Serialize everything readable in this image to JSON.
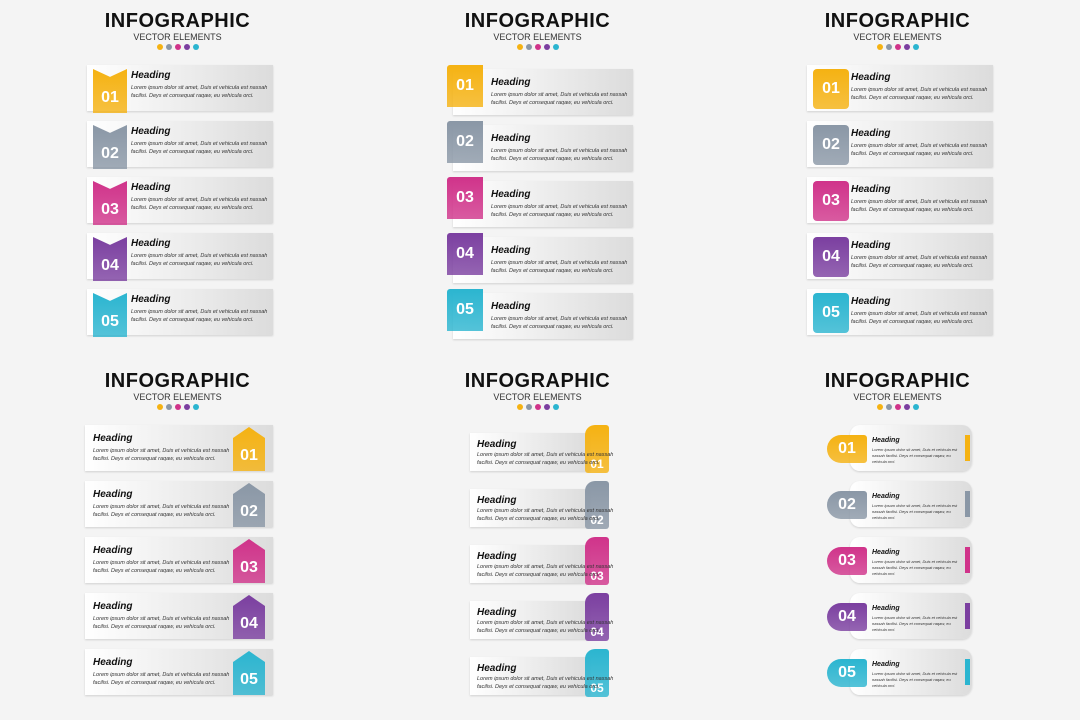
{
  "title": "INFOGRAPHIC",
  "subtitle": "VECTOR ELEMENTS",
  "colors": [
    "#f5b212",
    "#8a97a6",
    "#d0338a",
    "#7b3fa0",
    "#2bb5d0"
  ],
  "panels": [
    {
      "style": "ribbon-left",
      "items": [
        {
          "number": "01",
          "heading": "Heading",
          "text": "Lorem ipsum dolor sit amet, Duis et vehicula est nassah facilisi. Deys et consequat raqaw, eu vehicula orci."
        },
        {
          "number": "02",
          "heading": "Heading",
          "text": "Lorem ipsum dolor sit amet, Duis et vehicula est nassah facilisi. Deys et consequat raqaw, eu vehicula orci."
        },
        {
          "number": "03",
          "heading": "Heading",
          "text": "Lorem ipsum dolor sit amet, Duis et vehicula est nassah facilisi. Deys et consequat raqaw, eu vehicula orci."
        },
        {
          "number": "04",
          "heading": "Heading",
          "text": "Lorem ipsum dolor sit amet, Duis et vehicula est nassah facilisi. Deys et consequat raqaw, eu vehicula orci."
        },
        {
          "number": "05",
          "heading": "Heading",
          "text": "Lorem ipsum dolor sit amet, Duis et vehicula est nassah facilisi. Deys et consequat raqaw, eu vehicula orci."
        }
      ]
    },
    {
      "style": "tab-left",
      "items": [
        {
          "number": "01",
          "heading": "Heading",
          "text": "Lorem ipsum dolor sit amet, Duis et vehicula est nassah facilisi. Deys et consequat raqaw, eu vehicula orci."
        },
        {
          "number": "02",
          "heading": "Heading",
          "text": "Lorem ipsum dolor sit amet, Duis et vehicula est nassah facilisi. Deys et consequat raqaw, eu vehicula orci."
        },
        {
          "number": "03",
          "heading": "Heading",
          "text": "Lorem ipsum dolor sit amet, Duis et vehicula est nassah facilisi. Deys et consequat raqaw, eu vehicula orci."
        },
        {
          "number": "04",
          "heading": "Heading",
          "text": "Lorem ipsum dolor sit amet, Duis et vehicula est nassah facilisi. Deys et consequat raqaw, eu vehicula orci."
        },
        {
          "number": "05",
          "heading": "Heading",
          "text": "Lorem ipsum dolor sit amet, Duis et vehicula est nassah facilisi. Deys et consequat raqaw, eu vehicula orci."
        }
      ]
    },
    {
      "style": "rounded-left",
      "items": [
        {
          "number": "01",
          "heading": "Heading",
          "text": "Lorem ipsum dolor sit amet, Duis et vehicula est nassah facilisi. Deys et consequat raqaw, eu vehicula orci."
        },
        {
          "number": "02",
          "heading": "Heading",
          "text": "Lorem ipsum dolor sit amet, Duis et vehicula est nassah facilisi. Deys et consequat raqaw, eu vehicula orci."
        },
        {
          "number": "03",
          "heading": "Heading",
          "text": "Lorem ipsum dolor sit amet, Duis et vehicula est nassah facilisi. Deys et consequat raqaw, eu vehicula orci."
        },
        {
          "number": "04",
          "heading": "Heading",
          "text": "Lorem ipsum dolor sit amet, Duis et vehicula est nassah facilisi. Deys et consequat raqaw, eu vehicula orci."
        },
        {
          "number": "05",
          "heading": "Heading",
          "text": "Lorem ipsum dolor sit amet, Duis et vehicula est nassah facilisi. Deys et consequat raqaw, eu vehicula orci."
        }
      ]
    },
    {
      "style": "house-right",
      "items": [
        {
          "number": "01",
          "heading": "Heading",
          "text": "Lorem ipsum dolor sit amet, Duis et vehicula est nassah facilisi. Deys et consequat raqaw, eu vehicula orci."
        },
        {
          "number": "02",
          "heading": "Heading",
          "text": "Lorem ipsum dolor sit amet, Duis et vehicula est nassah facilisi. Deys et consequat raqaw, eu vehicula orci."
        },
        {
          "number": "03",
          "heading": "Heading",
          "text": "Lorem ipsum dolor sit amet, Duis et vehicula est nassah facilisi. Deys et consequat raqaw, eu vehicula orci."
        },
        {
          "number": "04",
          "heading": "Heading",
          "text": "Lorem ipsum dolor sit amet, Duis et vehicula est nassah facilisi. Deys et consequat raqaw, eu vehicula orci."
        },
        {
          "number": "05",
          "heading": "Heading",
          "text": "Lorem ipsum dolor sit amet, Duis et vehicula est nassah facilisi. Deys et consequat raqaw, eu vehicula orci."
        }
      ]
    },
    {
      "style": "scroll-right",
      "items": [
        {
          "number": "01",
          "heading": "Heading",
          "text": "Lorem ipsum dolor sit amet, Duis et vehicula est nassah facilisi. Deys et consequat raqaw, eu vehicula orci."
        },
        {
          "number": "02",
          "heading": "Heading",
          "text": "Lorem ipsum dolor sit amet, Duis et vehicula est nassah facilisi. Deys et consequat raqaw, eu vehicula orci."
        },
        {
          "number": "03",
          "heading": "Heading",
          "text": "Lorem ipsum dolor sit amet, Duis et vehicula est nassah facilisi. Deys et consequat raqaw, eu vehicula orci."
        },
        {
          "number": "04",
          "heading": "Heading",
          "text": "Lorem ipsum dolor sit amet, Duis et vehicula est nassah facilisi. Deys et consequat raqaw, eu vehicula orci."
        },
        {
          "number": "05",
          "heading": "Heading",
          "text": "Lorem ipsum dolor sit amet, Duis et vehicula est nassah facilisi. Deys et consequat raqaw, eu vehicula orci."
        }
      ]
    },
    {
      "style": "pill-left",
      "items": [
        {
          "number": "01",
          "heading": "Heading",
          "text": "Lorem ipsum dolor sit amet, Duis et vehicula est nassah facilisi. Deys et consequat raqaw, eu vehicula orci."
        },
        {
          "number": "02",
          "heading": "Heading",
          "text": "Lorem ipsum dolor sit amet, Duis et vehicula est nassah facilisi. Deys et consequat raqaw, eu vehicula orci."
        },
        {
          "number": "03",
          "heading": "Heading",
          "text": "Lorem ipsum dolor sit amet, Duis et vehicula est nassah facilisi. Deys et consequat raqaw, eu vehicula orci."
        },
        {
          "number": "04",
          "heading": "Heading",
          "text": "Lorem ipsum dolor sit amet, Duis et vehicula est nassah facilisi. Deys et consequat raqaw, eu vehicula orci."
        },
        {
          "number": "05",
          "heading": "Heading",
          "text": "Lorem ipsum dolor sit amet, Duis et vehicula est nassah facilisi. Deys et consequat raqaw, eu vehicula orci."
        }
      ]
    }
  ]
}
